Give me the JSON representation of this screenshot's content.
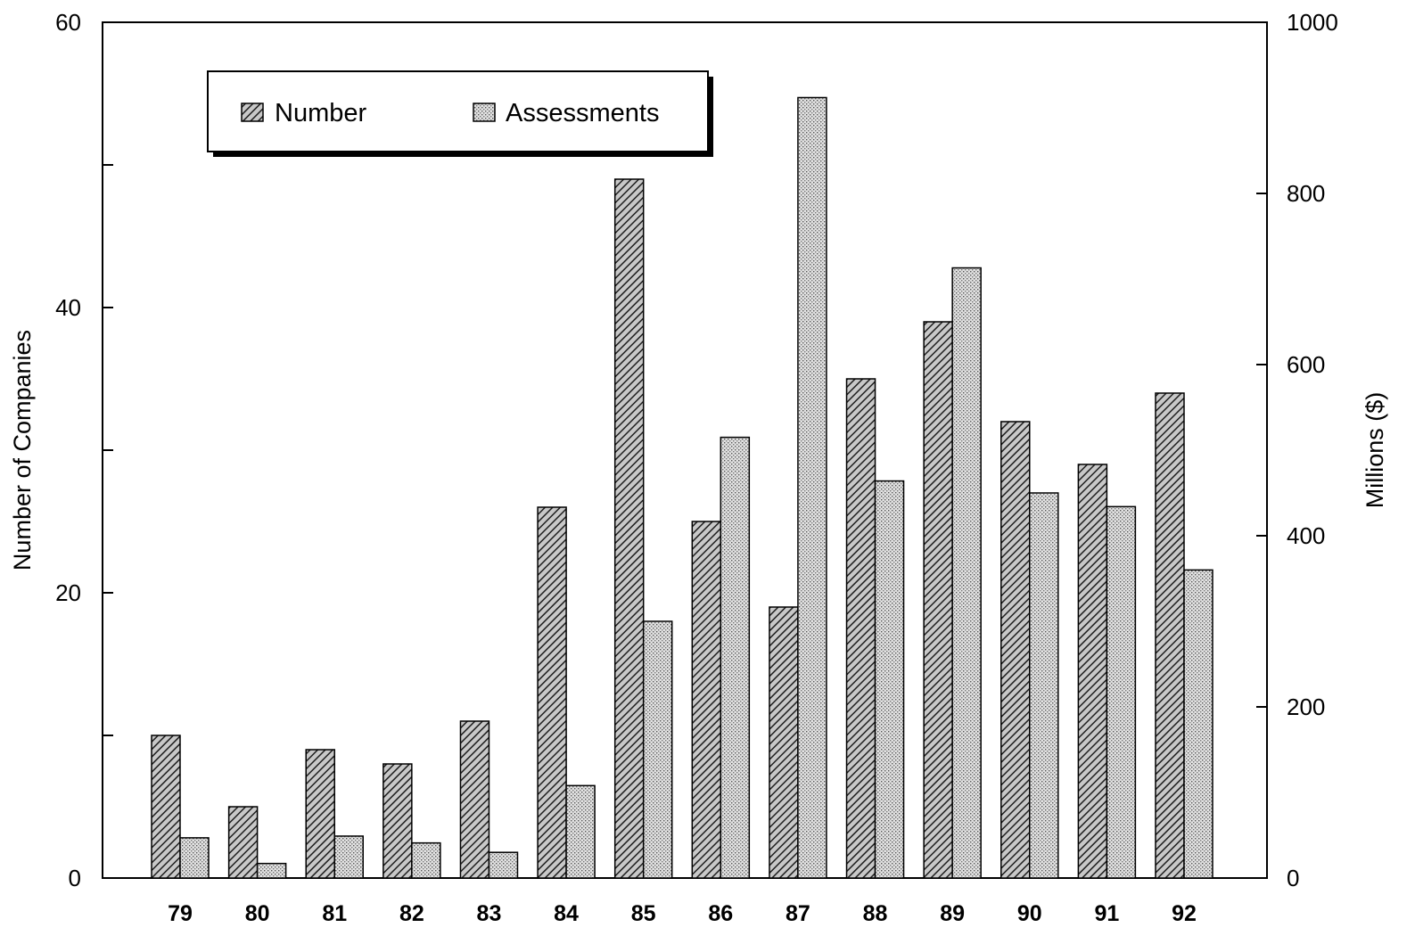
{
  "chart_data": {
    "type": "bar",
    "categories": [
      "79",
      "80",
      "81",
      "82",
      "83",
      "84",
      "85",
      "86",
      "87",
      "88",
      "89",
      "90",
      "91",
      "92"
    ],
    "series": [
      {
        "name": "Number",
        "axis": "left",
        "pattern": "diagonal-hatch",
        "values": [
          10,
          5,
          9,
          8,
          11,
          26,
          49,
          25,
          19,
          35,
          39,
          32,
          29,
          34
        ]
      },
      {
        "name": "Assessments",
        "axis": "right",
        "pattern": "stipple",
        "values": [
          47,
          17,
          49,
          41,
          30,
          108,
          300,
          515,
          912,
          464,
          713,
          450,
          434,
          360
        ]
      }
    ],
    "ylabel": "Number of Companies",
    "y2label": "Millions ($)",
    "ylim": [
      0,
      60
    ],
    "y2lim": [
      0,
      1000
    ],
    "yticks": [
      0,
      20,
      40,
      60
    ],
    "yticks_minor": [
      10,
      30,
      50
    ],
    "y2ticks": [
      0,
      200,
      400,
      600,
      800,
      1000
    ],
    "legend_position": "top-left",
    "grid": false
  }
}
